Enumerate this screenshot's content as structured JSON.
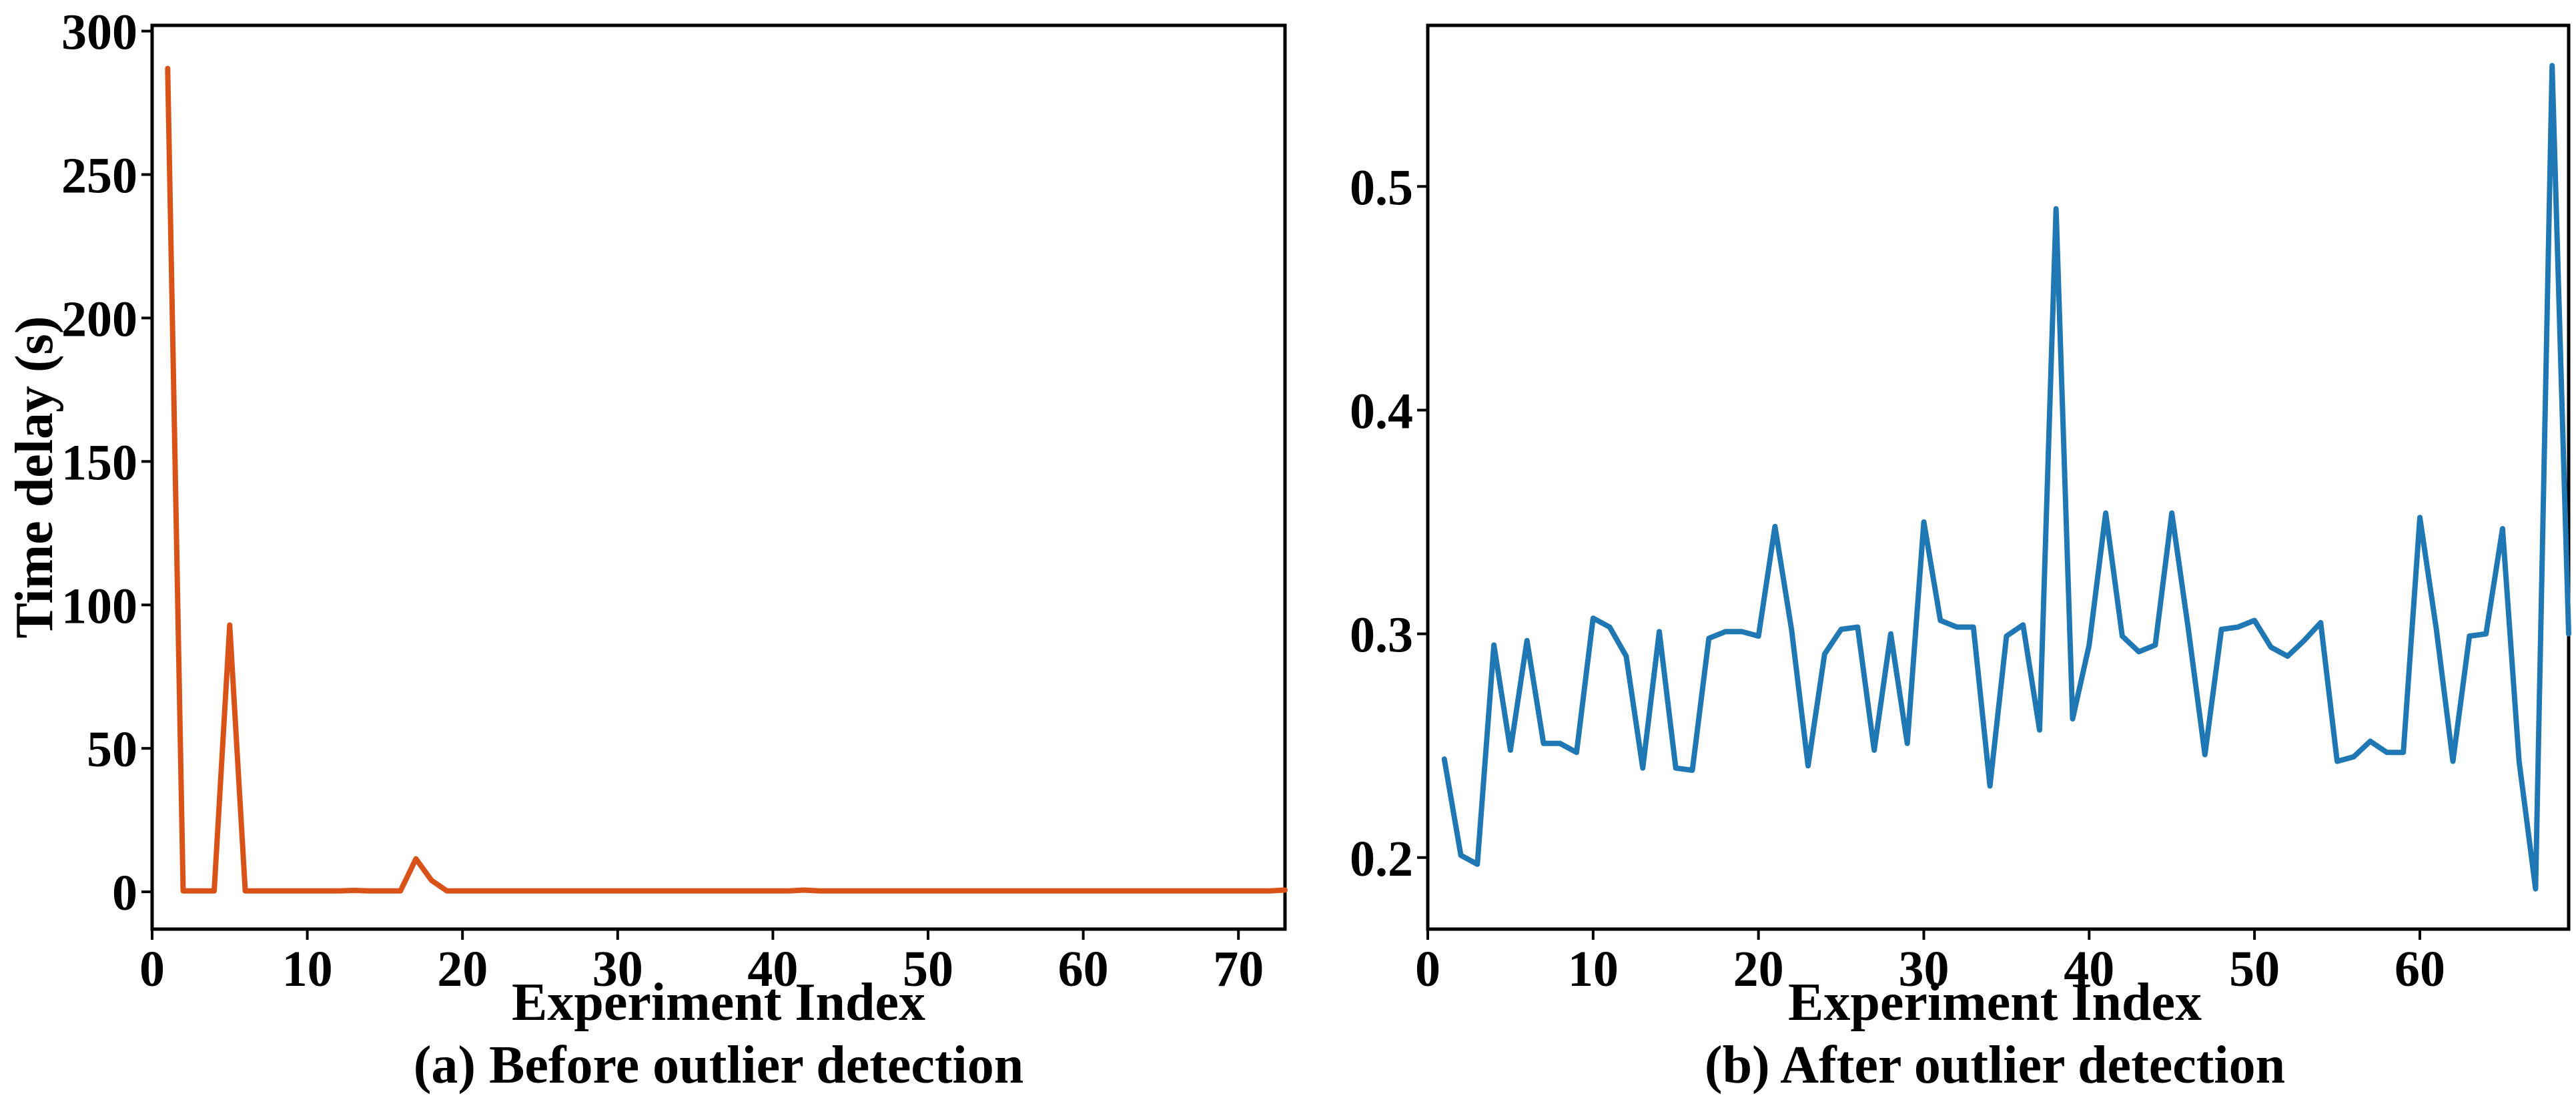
{
  "figure": {
    "panels": [
      {
        "caption": "(a) Before outlier detection",
        "xlabel": "Experiment Index",
        "ylabel": "Time delay (s)",
        "line_color": "#D95319",
        "xticks": [
          0,
          10,
          20,
          30,
          40,
          50,
          60,
          70
        ],
        "yticks": [
          0,
          50,
          100,
          150,
          200,
          250,
          300
        ]
      },
      {
        "caption": "(b) After outlier detection",
        "xlabel": "Experiment Index",
        "ylabel": "",
        "line_color": "#1F77B4",
        "xticks": [
          0,
          10,
          20,
          30,
          40,
          50,
          60
        ],
        "yticks": [
          0.2,
          0.3,
          0.4,
          0.5
        ]
      }
    ]
  },
  "chart_data": [
    {
      "type": "line",
      "title": "(a) Before outlier detection",
      "xlabel": "Experiment Index",
      "ylabel": "Time delay (s)",
      "xlim": [
        0,
        73
      ],
      "ylim": [
        -13,
        302
      ],
      "grid": false,
      "series": [
        {
          "color": "#D95319",
          "x": [
            1,
            2,
            3,
            4,
            5,
            6,
            7,
            8,
            9,
            10,
            11,
            12,
            13,
            14,
            15,
            16,
            17,
            18,
            19,
            20,
            21,
            22,
            23,
            24,
            25,
            26,
            27,
            28,
            29,
            30,
            31,
            32,
            33,
            34,
            35,
            36,
            37,
            38,
            39,
            40,
            41,
            42,
            43,
            44,
            45,
            46,
            47,
            48,
            49,
            50,
            51,
            52,
            53,
            54,
            55,
            56,
            57,
            58,
            59,
            60,
            61,
            62,
            63,
            64,
            65,
            66,
            67,
            68,
            69,
            70,
            71,
            72,
            73
          ],
          "y": [
            287,
            0.3,
            0.3,
            0.3,
            93,
            0.3,
            0.3,
            0.3,
            0.3,
            0.3,
            0.3,
            0.3,
            0.5,
            0.3,
            0.3,
            0.3,
            11.5,
            4,
            0.3,
            0.3,
            0.3,
            0.3,
            0.3,
            0.3,
            0.3,
            0.3,
            0.3,
            0.3,
            0.3,
            0.3,
            0.3,
            0.3,
            0.3,
            0.3,
            0.3,
            0.3,
            0.3,
            0.3,
            0.3,
            0.3,
            0.3,
            0.6,
            0.3,
            0.3,
            0.3,
            0.3,
            0.3,
            0.3,
            0.3,
            0.3,
            0.3,
            0.3,
            0.3,
            0.3,
            0.3,
            0.3,
            0.3,
            0.3,
            0.3,
            0.3,
            0.3,
            0.3,
            0.3,
            0.3,
            0.3,
            0.3,
            0.3,
            0.3,
            0.3,
            0.3,
            0.3,
            0.3,
            0.6
          ]
        }
      ]
    },
    {
      "type": "line",
      "title": "(b) After outlier detection",
      "xlabel": "Experiment Index",
      "ylabel": "",
      "xlim": [
        0,
        69
      ],
      "ylim": [
        0.168,
        0.572
      ],
      "grid": false,
      "series": [
        {
          "color": "#1F77B4",
          "x": [
            1,
            2,
            3,
            4,
            5,
            6,
            7,
            8,
            9,
            10,
            11,
            12,
            13,
            14,
            15,
            16,
            17,
            18,
            19,
            20,
            21,
            22,
            23,
            24,
            25,
            26,
            27,
            28,
            29,
            30,
            31,
            32,
            33,
            34,
            35,
            36,
            37,
            38,
            39,
            40,
            41,
            42,
            43,
            44,
            45,
            46,
            47,
            48,
            49,
            50,
            51,
            52,
            53,
            54,
            55,
            56,
            57,
            58,
            59,
            60,
            61,
            62,
            63,
            64,
            65,
            66,
            67,
            68,
            69
          ],
          "y": [
            0.244,
            0.201,
            0.197,
            0.295,
            0.248,
            0.297,
            0.251,
            0.251,
            0.247,
            0.307,
            0.303,
            0.29,
            0.24,
            0.301,
            0.24,
            0.239,
            0.298,
            0.301,
            0.301,
            0.299,
            0.348,
            0.302,
            0.241,
            0.291,
            0.302,
            0.303,
            0.248,
            0.3,
            0.251,
            0.35,
            0.306,
            0.303,
            0.303,
            0.232,
            0.299,
            0.304,
            0.257,
            0.49,
            0.262,
            0.295,
            0.354,
            0.299,
            0.292,
            0.295,
            0.354,
            0.302,
            0.246,
            0.302,
            0.303,
            0.306,
            0.294,
            0.29,
            0.297,
            0.305,
            0.243,
            0.245,
            0.252,
            0.247,
            0.247,
            0.352,
            0.302,
            0.243,
            0.299,
            0.3,
            0.347,
            0.243,
            0.186,
            0.554,
            0.3
          ]
        }
      ]
    }
  ]
}
